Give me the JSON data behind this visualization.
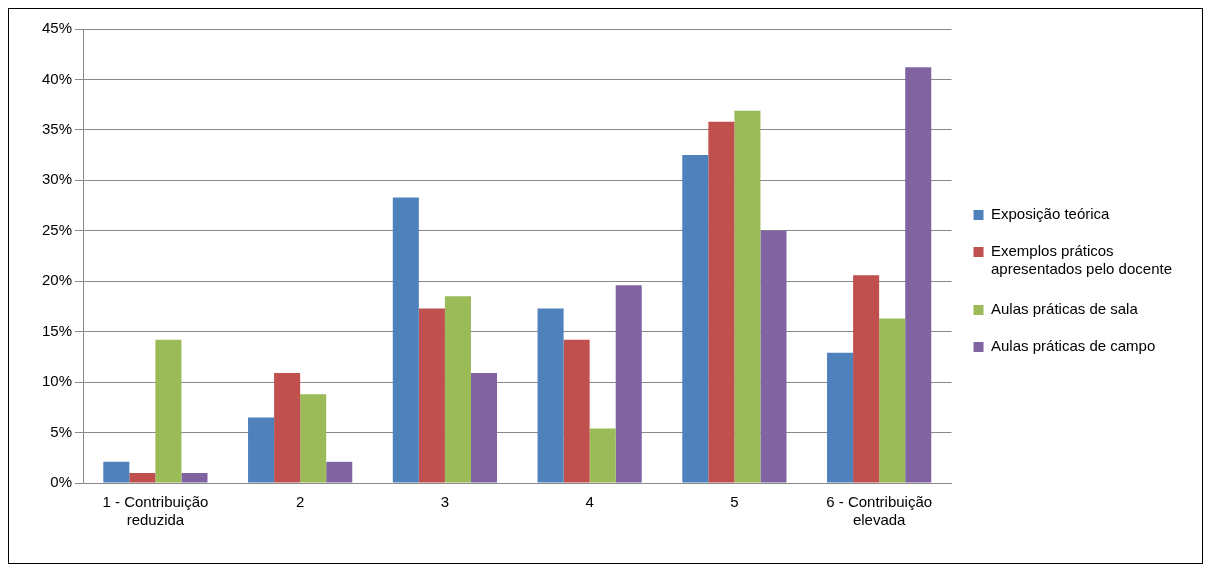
{
  "chart_data": {
    "type": "bar",
    "categories": [
      "1 - Contribuição reduzida",
      "2",
      "3",
      "4",
      "5",
      "6 - Contribuição elevada"
    ],
    "series": [
      {
        "name": "Exposição teórica",
        "color": "#4f81bd",
        "values": [
          2.1,
          6.5,
          28.3,
          17.3,
          32.5,
          12.9
        ]
      },
      {
        "name": "Exemplos práticos apresentados pelo docente",
        "color": "#c0504d",
        "values": [
          1.0,
          10.9,
          17.3,
          14.2,
          35.8,
          20.6
        ]
      },
      {
        "name": "Aulas práticas de sala",
        "color": "#9bbb59",
        "values": [
          14.2,
          8.8,
          18.5,
          5.4,
          36.9,
          16.3
        ]
      },
      {
        "name": "Aulas práticas de campo",
        "color": "#8064a2",
        "values": [
          1.0,
          2.1,
          10.9,
          19.6,
          25.0,
          41.2
        ]
      }
    ],
    "ylim": [
      0,
      45
    ],
    "yticks": [
      {
        "value": 0,
        "label": "0%"
      },
      {
        "value": 5,
        "label": "5%"
      },
      {
        "value": 10,
        "label": "10%"
      },
      {
        "value": 15,
        "label": "15%"
      },
      {
        "value": 20,
        "label": "20%"
      },
      {
        "value": 25,
        "label": "25%"
      },
      {
        "value": 30,
        "label": "30%"
      },
      {
        "value": 35,
        "label": "35%"
      },
      {
        "value": 40,
        "label": "40%"
      },
      {
        "value": 45,
        "label": "45%"
      }
    ],
    "grid": "y",
    "legend": "right"
  }
}
